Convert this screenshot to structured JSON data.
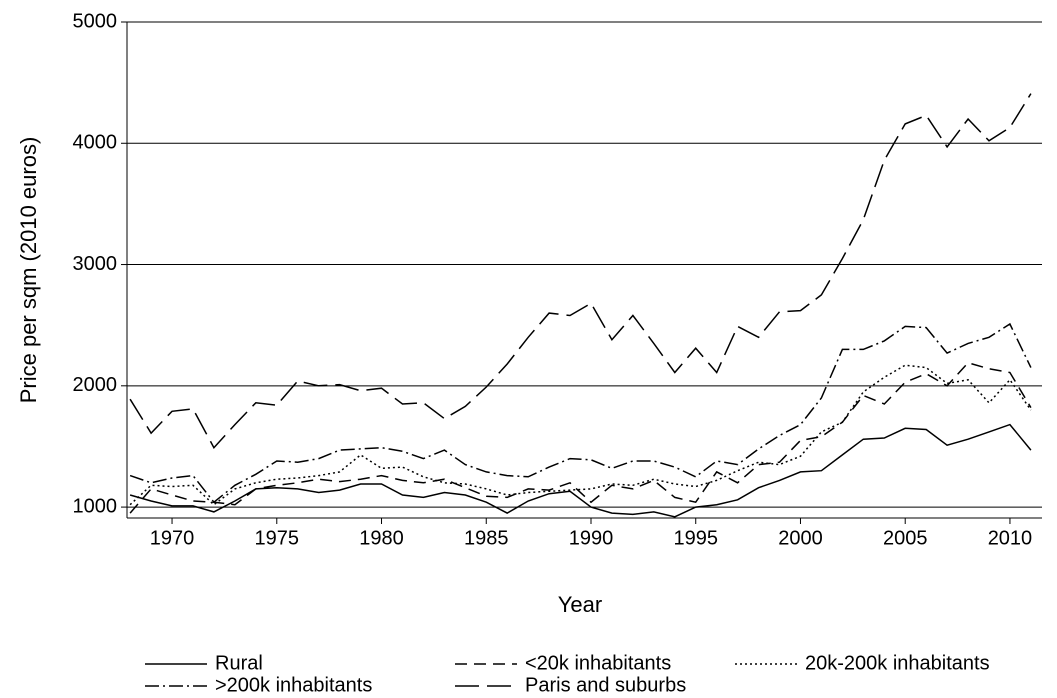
{
  "chart_data": {
    "type": "line",
    "x_label": "Year",
    "y_label": "Price per sqm (2010 euros)",
    "x": [
      1968,
      1969,
      1970,
      1971,
      1972,
      1973,
      1974,
      1975,
      1976,
      1977,
      1978,
      1979,
      1980,
      1981,
      1982,
      1983,
      1984,
      1985,
      1986,
      1987,
      1988,
      1989,
      1990,
      1991,
      1992,
      1993,
      1994,
      1995,
      1996,
      1997,
      1998,
      1999,
      2000,
      2001,
      2002,
      2003,
      2004,
      2005,
      2006,
      2007,
      2008,
      2009,
      2010,
      2011
    ],
    "series": [
      {
        "name": "Rural",
        "color": "#000000",
        "dash": "none",
        "values": [
          1100,
          1050,
          1010,
          1010,
          960,
          1050,
          1150,
          1160,
          1150,
          1120,
          1140,
          1190,
          1190,
          1100,
          1080,
          1120,
          1100,
          1040,
          950,
          1050,
          1110,
          1130,
          1000,
          950,
          940,
          960,
          920,
          1000,
          1020,
          1060,
          1160,
          1220,
          1290,
          1300,
          1430,
          1560,
          1570,
          1650,
          1640,
          1510,
          1560,
          1620,
          1680,
          1470
        ]
      },
      {
        "name": "<20k inhabitants",
        "color": "#000000",
        "dash": "12,7",
        "values": [
          950,
          1150,
          1100,
          1050,
          1040,
          1020,
          1150,
          1180,
          1200,
          1230,
          1210,
          1230,
          1260,
          1220,
          1200,
          1230,
          1160,
          1090,
          1080,
          1150,
          1140,
          1200,
          1040,
          1180,
          1150,
          1220,
          1080,
          1040,
          1290,
          1200,
          1350,
          1370,
          1550,
          1580,
          1700,
          1920,
          1850,
          2030,
          2100,
          2000,
          2190,
          2140,
          2110,
          1820
        ]
      },
      {
        "name": "20k-200k inhabitants",
        "color": "#000000",
        "dash": "2,3",
        "values": [
          1020,
          1180,
          1170,
          1180,
          1020,
          1150,
          1200,
          1230,
          1240,
          1260,
          1290,
          1430,
          1320,
          1330,
          1250,
          1200,
          1190,
          1150,
          1100,
          1120,
          1130,
          1140,
          1150,
          1190,
          1180,
          1230,
          1190,
          1170,
          1220,
          1300,
          1370,
          1350,
          1420,
          1620,
          1700,
          1950,
          2070,
          2170,
          2150,
          2020,
          2050,
          1860,
          2050,
          1800
        ]
      },
      {
        "name": ">200k inhabitants",
        "color": "#000000",
        "dash": "14,4,2,4",
        "values": [
          1260,
          1200,
          1240,
          1260,
          1040,
          1180,
          1270,
          1380,
          1370,
          1400,
          1470,
          1480,
          1490,
          1460,
          1400,
          1470,
          1350,
          1290,
          1260,
          1250,
          1330,
          1400,
          1390,
          1320,
          1380,
          1380,
          1330,
          1250,
          1380,
          1350,
          1480,
          1590,
          1680,
          1900,
          2300,
          2300,
          2370,
          2490,
          2480,
          2270,
          2350,
          2400,
          2510,
          2150
        ]
      },
      {
        "name": "Paris and suburbs",
        "color": "#000000",
        "dash": "24,8",
        "values": [
          1890,
          1610,
          1790,
          1810,
          1490,
          1680,
          1860,
          1840,
          2040,
          2000,
          2010,
          1960,
          1980,
          1850,
          1860,
          1730,
          1830,
          1990,
          2180,
          2400,
          2600,
          2580,
          2680,
          2380,
          2580,
          2350,
          2110,
          2310,
          2110,
          2490,
          2400,
          2610,
          2620,
          2750,
          3050,
          3370,
          3860,
          4160,
          4230,
          3970,
          4200,
          4020,
          4130,
          4410
        ]
      }
    ],
    "xlim": [
      1967.85,
      2011.53
    ],
    "xticks": [
      1970,
      1975,
      1980,
      1985,
      1990,
      1995,
      2000,
      2005,
      2010
    ],
    "ylim": [
      910,
      5000
    ],
    "yticks": [
      1000,
      2000,
      3000,
      4000,
      5000
    ],
    "grid": true
  }
}
